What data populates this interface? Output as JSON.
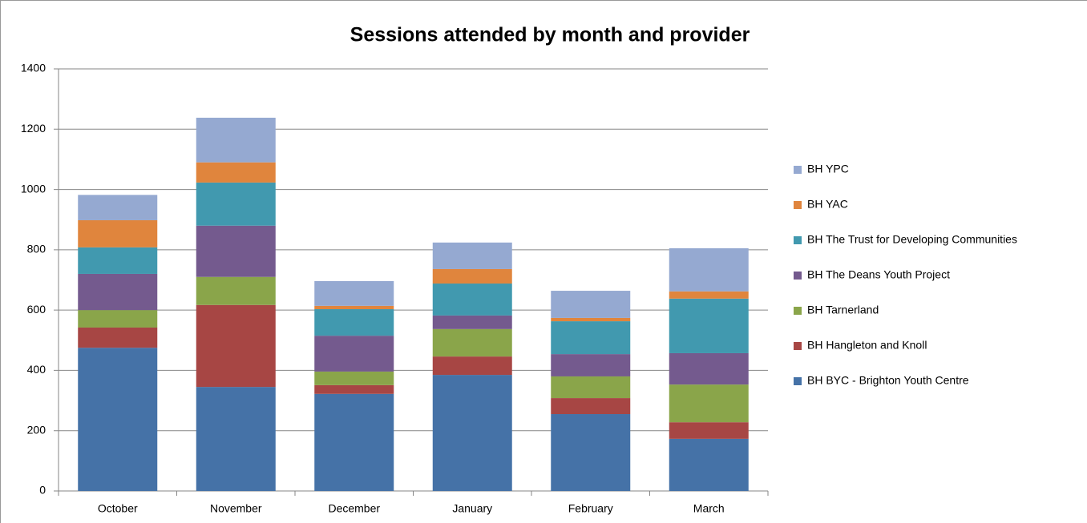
{
  "chart_data": {
    "type": "stacked_bar",
    "title": "Sessions attended by month and provider",
    "categories": [
      "October",
      "November",
      "December",
      "January",
      "February",
      "March"
    ],
    "series": [
      {
        "name": "BH BYC - Brighton Youth Centre",
        "color": "#4572a7",
        "values": [
          475,
          345,
          322,
          385,
          255,
          173
        ]
      },
      {
        "name": "BH Hangleton and Knoll",
        "color": "#a74644",
        "values": [
          67,
          272,
          29,
          61,
          53,
          55
        ]
      },
      {
        "name": "BH Tarnerland",
        "color": "#8aa54a",
        "values": [
          58,
          93,
          45,
          91,
          72,
          125
        ]
      },
      {
        "name": "BH The Deans Youth Project",
        "color": "#745a8e",
        "values": [
          120,
          170,
          119,
          45,
          74,
          104
        ]
      },
      {
        "name": "BH The Trust for Developing Communities",
        "color": "#4199af",
        "values": [
          88,
          143,
          88,
          106,
          109,
          181
        ]
      },
      {
        "name": "BH YAC",
        "color": "#e0853d",
        "values": [
          90,
          67,
          11,
          48,
          11,
          24
        ]
      },
      {
        "name": "BH YPC",
        "color": "#95a9d1",
        "values": [
          84,
          148,
          82,
          88,
          90,
          143
        ]
      }
    ],
    "ylim": [
      0,
      1400
    ],
    "yticks": [
      0,
      200,
      400,
      600,
      800,
      1000,
      1200,
      1400
    ],
    "grid": true,
    "legend": "right"
  }
}
